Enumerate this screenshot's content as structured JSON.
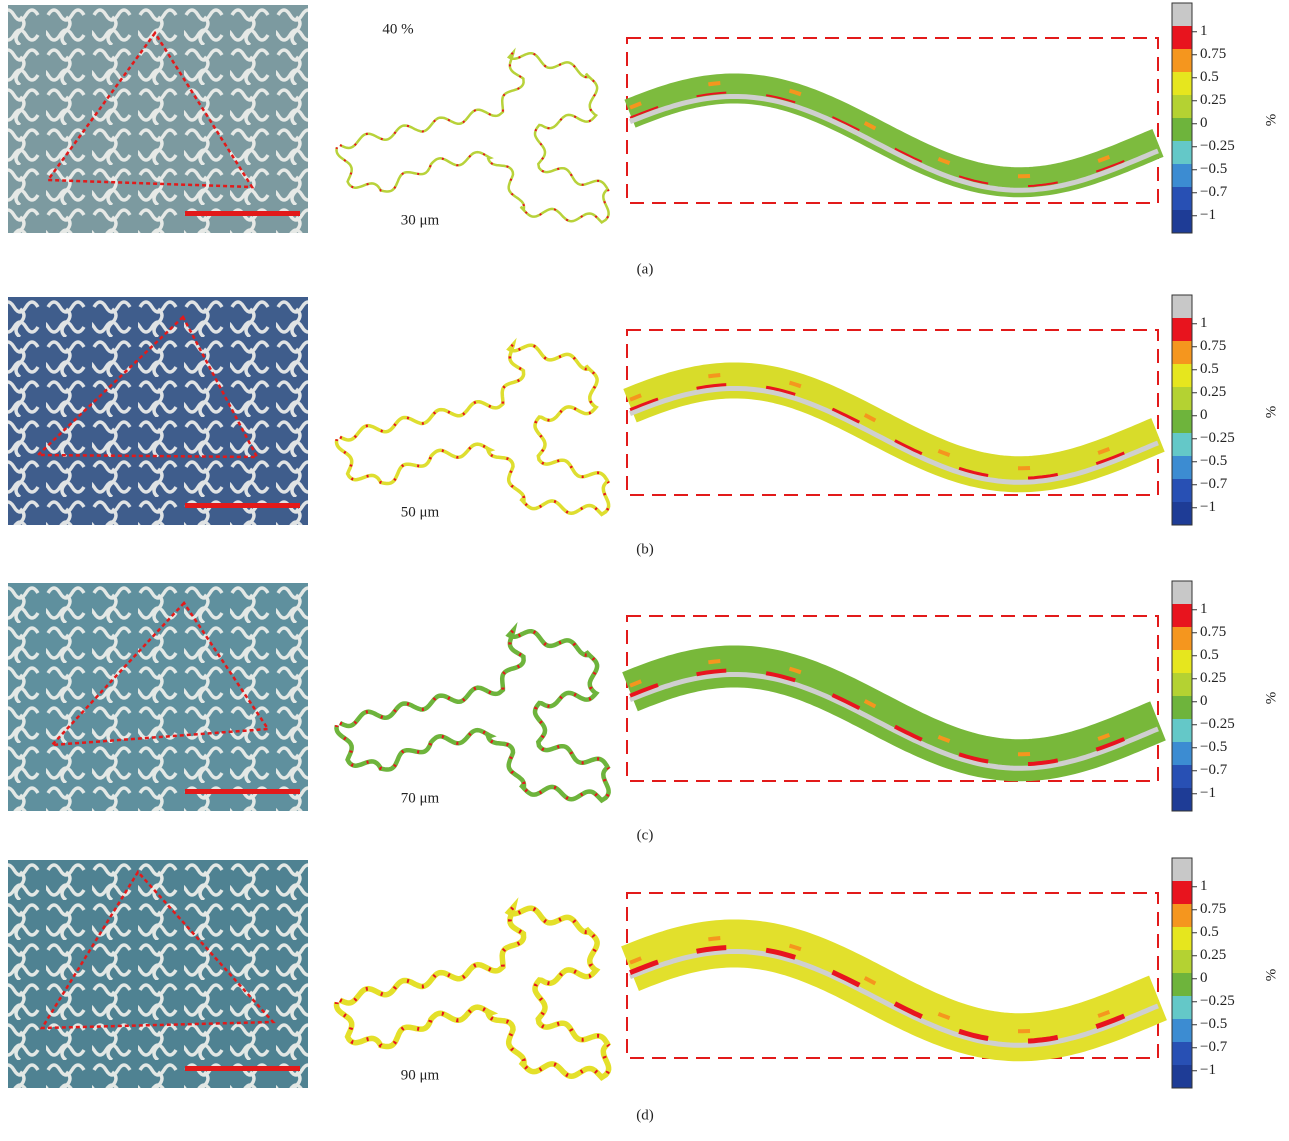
{
  "rows": [
    {
      "label": "(a)",
      "strain": "40 %",
      "width": "30 μm",
      "colorbar": {
        "labels": [
          "1",
          "0.75",
          "0.5",
          "0.25",
          "0",
          "−0.25",
          "−0.5",
          "−0.7",
          "−1"
        ],
        "unit": "%"
      }
    },
    {
      "label": "(b)",
      "width": "50 μm",
      "colorbar": {
        "labels": [
          "1",
          "0.75",
          "0.5",
          "0.25",
          "0",
          "−0.25",
          "−0.5",
          "−0.7",
          "−1"
        ],
        "unit": "%"
      }
    },
    {
      "label": "(c)",
      "width": "70 μm",
      "colorbar": {
        "labels": [
          "1",
          "0.75",
          "0.5",
          "0.25",
          "0",
          "−0.25",
          "−0.5",
          "−0.7",
          "−1"
        ],
        "unit": "%"
      }
    },
    {
      "label": "(d)",
      "width": "90 μm",
      "colorbar": {
        "labels": [
          "1",
          "0.75",
          "0.5",
          "0.25",
          "0",
          "−0.25",
          "−0.5",
          "−0.7",
          "−1"
        ],
        "unit": "%"
      }
    }
  ]
}
